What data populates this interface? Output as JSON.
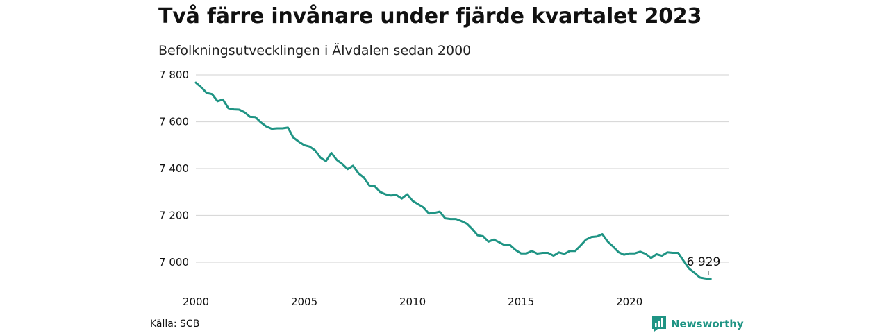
{
  "title": "Två färre invånare under fjärde kvartalet 2023",
  "subtitle": "Befolkningsutvecklingen i Älvdalen sedan 2000",
  "source": "Källa: SCB",
  "brand": "Newsworthy",
  "brand_icon": "bar-chart-speech-icon",
  "colors": {
    "line": "#1f9484",
    "grid": "#d9d9d9",
    "text": "#111111"
  },
  "chart_data": {
    "type": "line",
    "title": "Två färre invånare under fjärde kvartalet 2023",
    "subtitle": "Befolkningsutvecklingen i Älvdalen sedan 2000",
    "xlabel": "",
    "ylabel": "",
    "xlim": [
      2000,
      2024
    ],
    "ylim": [
      6900,
      7800
    ],
    "y_ticks": [
      7000,
      7200,
      7400,
      7600,
      7800
    ],
    "y_tick_labels": [
      "7 000",
      "7 200",
      "7 400",
      "7 600",
      "7 800"
    ],
    "x_ticks": [
      2000,
      2005,
      2010,
      2015,
      2020
    ],
    "x_tick_labels": [
      "2000",
      "2005",
      "2010",
      "2015",
      "2020"
    ],
    "grid": true,
    "end_label": "6 929",
    "series": [
      {
        "x": [
          2000.0,
          2000.25,
          2000.5,
          2000.75,
          2001.0,
          2001.25,
          2001.5,
          2001.75,
          2002.0,
          2002.25,
          2002.5,
          2002.75,
          2003.0,
          2003.25,
          2003.5,
          2003.75,
          2004.0,
          2004.25,
          2004.5,
          2004.75,
          2005.0,
          2005.25,
          2005.5,
          2005.75,
          2006.0,
          2006.25,
          2006.5,
          2006.75,
          2007.0,
          2007.25,
          2007.5,
          2007.75,
          2008.0,
          2008.25,
          2008.5,
          2008.75,
          2009.0,
          2009.25,
          2009.5,
          2009.75,
          2010.0,
          2010.25,
          2010.5,
          2010.75,
          2011.0,
          2011.25,
          2011.5,
          2011.75,
          2012.0,
          2012.25,
          2012.5,
          2012.75,
          2013.0,
          2013.25,
          2013.5,
          2013.75,
          2014.0,
          2014.25,
          2014.5,
          2014.75,
          2015.0,
          2015.25,
          2015.5,
          2015.75,
          2016.0,
          2016.25,
          2016.5,
          2016.75,
          2017.0,
          2017.25,
          2017.5,
          2017.75,
          2018.0,
          2018.25,
          2018.5,
          2018.75,
          2019.0,
          2019.25,
          2019.5,
          2019.75,
          2020.0,
          2020.25,
          2020.5,
          2020.75,
          2021.0,
          2021.25,
          2021.5,
          2021.75,
          2022.0,
          2022.25,
          2022.5,
          2022.75,
          2023.0,
          2023.25,
          2023.5,
          2023.75
        ],
        "values": [
          7767,
          7747,
          7723,
          7718,
          7688,
          7695,
          7658,
          7653,
          7652,
          7640,
          7621,
          7620,
          7597,
          7580,
          7570,
          7572,
          7572,
          7575,
          7532,
          7515,
          7500,
          7494,
          7478,
          7447,
          7432,
          7467,
          7437,
          7420,
          7398,
          7412,
          7380,
          7362,
          7328,
          7325,
          7300,
          7290,
          7285,
          7287,
          7272,
          7290,
          7262,
          7248,
          7234,
          7208,
          7211,
          7216,
          7188,
          7185,
          7185,
          7176,
          7165,
          7142,
          7115,
          7111,
          7088,
          7097,
          7085,
          7073,
          7073,
          7052,
          7038,
          7038,
          7048,
          7037,
          7040,
          7040,
          7028,
          7042,
          7036,
          7048,
          7048,
          7071,
          7097,
          7108,
          7110,
          7120,
          7088,
          7067,
          7043,
          7032,
          7038,
          7038,
          7045,
          7036,
          7018,
          7034,
          7028,
          7042,
          7040,
          7040,
          7006,
          6973,
          6955,
          6935,
          6931,
          6929
        ]
      }
    ]
  }
}
